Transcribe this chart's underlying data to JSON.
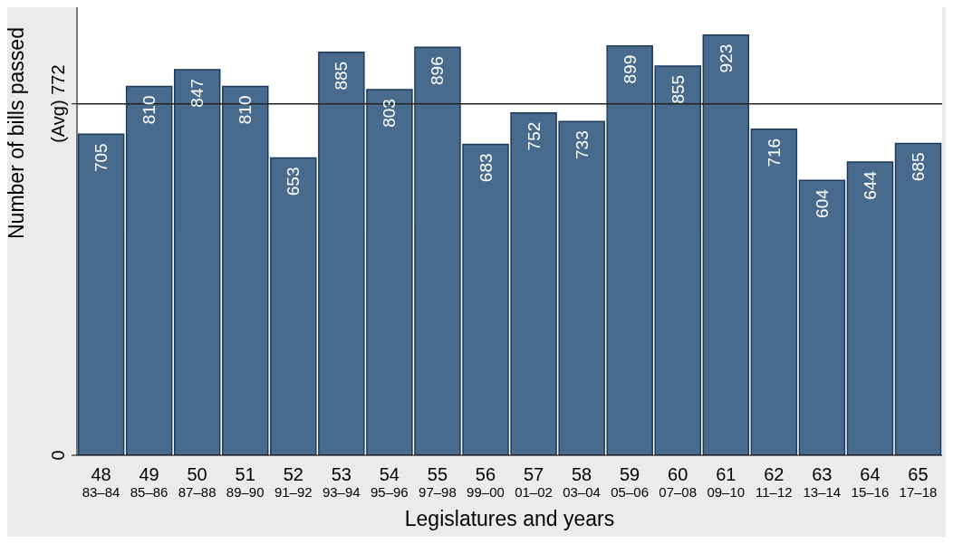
{
  "chart_data": {
    "type": "bar",
    "xlabel": "Legislatures and years",
    "ylabel": "Number of bills passed",
    "categories": [
      "48\n83–84",
      "49\n85–86",
      "50\n87–88",
      "51\n89–90",
      "52\n91–92",
      "53\n93–94",
      "54\n95–96",
      "55\n97–98",
      "56\n99–00",
      "57\n01–02",
      "58\n03–04",
      "59\n05–06",
      "60\n07–08",
      "61\n09–10",
      "62\n11–12",
      "63\n13–14",
      "64\n15–16",
      "65\n17–18"
    ],
    "values": [
      705,
      810,
      847,
      810,
      653,
      885,
      803,
      896,
      683,
      752,
      733,
      899,
      855,
      923,
      716,
      604,
      644,
      685
    ],
    "color": "#486b8d",
    "ylim": [
      0,
      990
    ],
    "yticks": [
      0,
      {
        "value": 772,
        "label": "(Avg) 772"
      }
    ],
    "ref_lines": [
      {
        "axis": "y",
        "value": 772,
        "color": "#222222"
      }
    ],
    "data_labels": true,
    "grid": false,
    "legend": false
  }
}
